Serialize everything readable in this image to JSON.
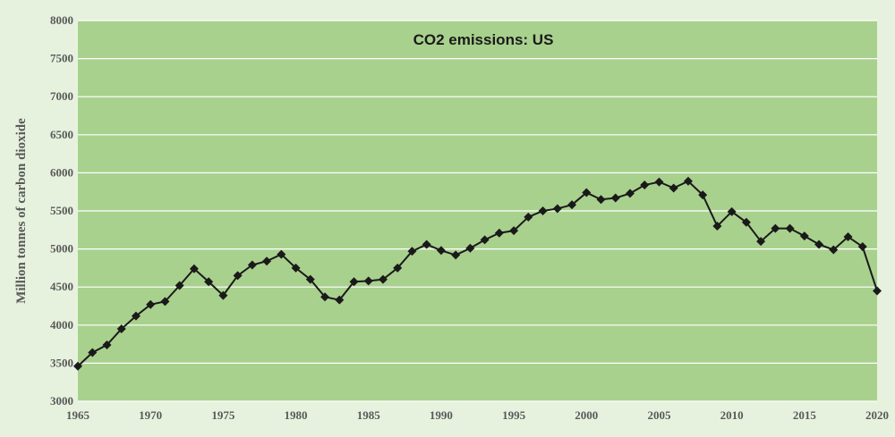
{
  "chart_data": {
    "type": "line",
    "title": "CO2 emissions: US",
    "xlabel": "",
    "ylabel": "Million tonnes of carbon dioxide",
    "xlim": [
      1965,
      2020
    ],
    "ylim": [
      3000,
      8000
    ],
    "xticks": [
      "1965",
      "1970",
      "1975",
      "1980",
      "1985",
      "1990",
      "1995",
      "2000",
      "2005",
      "2010",
      "2015",
      "2020"
    ],
    "yticks": [
      "3000",
      "3500",
      "4000",
      "4500",
      "5000",
      "5500",
      "6000",
      "6500",
      "7000",
      "7500",
      "8000"
    ],
    "grid": true,
    "legend": "none",
    "colors": {
      "plot_bg": "#a9d18e",
      "outer_bg": "#e6f2de",
      "line": "#1a1a1a",
      "grid": "#ffffff"
    },
    "series": [
      {
        "x": [
          1965,
          1966,
          1967,
          1968,
          1969,
          1970,
          1971,
          1972,
          1973,
          1974,
          1975,
          1976,
          1977,
          1978,
          1979,
          1980,
          1981,
          1982,
          1983,
          1984,
          1985,
          1986,
          1987,
          1988,
          1989,
          1990,
          1991,
          1992,
          1993,
          1994,
          1995,
          1996,
          1997,
          1998,
          1999,
          2000,
          2001,
          2002,
          2003,
          2004,
          2005,
          2006,
          2007,
          2008,
          2009,
          2010,
          2011,
          2012,
          2013,
          2014,
          2015,
          2016,
          2017,
          2018,
          2019,
          2020
        ],
        "values": [
          3460,
          3640,
          3740,
          3950,
          4120,
          4270,
          4310,
          4520,
          4740,
          4570,
          4390,
          4650,
          4790,
          4840,
          4930,
          4750,
          4600,
          4370,
          4330,
          4570,
          4580,
          4600,
          4750,
          4970,
          5060,
          4980,
          4920,
          5010,
          5120,
          5210,
          5240,
          5420,
          5500,
          5530,
          5580,
          5740,
          5650,
          5670,
          5730,
          5840,
          5880,
          5800,
          5890,
          5710,
          5300,
          5490,
          5350,
          5100,
          5270,
          5270,
          5170,
          5060,
          4990,
          5160,
          5030,
          4450
        ]
      }
    ]
  }
}
